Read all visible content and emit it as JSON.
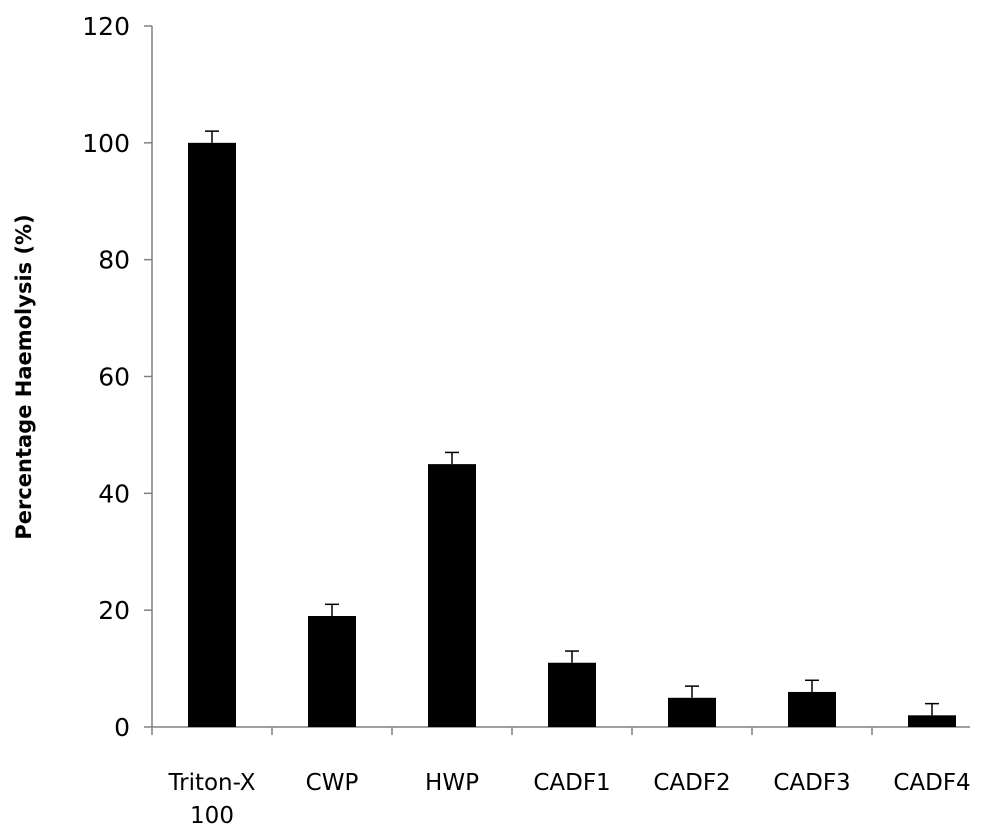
{
  "chart_data": {
    "type": "bar",
    "title": "",
    "xlabel": "",
    "ylabel": "Percentage Haemolysis (%)",
    "ylim": [
      0,
      120
    ],
    "yticks": [
      0,
      20,
      40,
      60,
      80,
      100,
      120
    ],
    "categories": [
      [
        "Triton-X",
        "100"
      ],
      [
        "CWP"
      ],
      [
        "HWP"
      ],
      [
        "CADF1"
      ],
      [
        "CADF2"
      ],
      [
        "CADF3"
      ],
      [
        "CADF4"
      ]
    ],
    "values": [
      100,
      19,
      45,
      11,
      5,
      6,
      2
    ],
    "errors": [
      2,
      2,
      2,
      2,
      2,
      2,
      2
    ],
    "grid": false,
    "legend": "none",
    "colors": {
      "bar": "#000000",
      "axis": "#808080",
      "text": "#000000"
    }
  }
}
